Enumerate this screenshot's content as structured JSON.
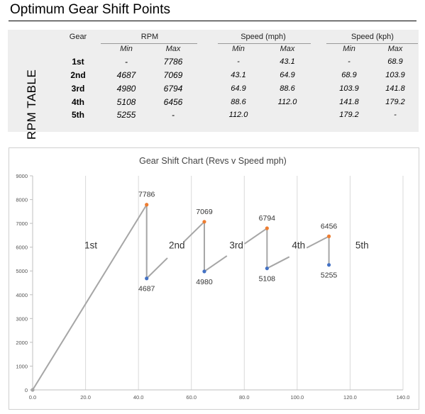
{
  "page_title": "Optimum Gear Shift Points",
  "table": {
    "side_label": "RPM TABLE",
    "headers": {
      "gear": "Gear",
      "rpm": "RPM",
      "speed_mph": "Speed (mph)",
      "speed_kph": "Speed (kph)",
      "min": "Min",
      "max": "Max"
    },
    "rows": [
      {
        "gear": "1st",
        "rpm_min": "-",
        "rpm_max": "7786",
        "mph_min": "-",
        "mph_max": "43.1",
        "kph_min": "-",
        "kph_max": "68.9"
      },
      {
        "gear": "2nd",
        "rpm_min": "4687",
        "rpm_max": "7069",
        "mph_min": "43.1",
        "mph_max": "64.9",
        "kph_min": "68.9",
        "kph_max": "103.9"
      },
      {
        "gear": "3rd",
        "rpm_min": "4980",
        "rpm_max": "6794",
        "mph_min": "64.9",
        "mph_max": "88.6",
        "kph_min": "103.9",
        "kph_max": "141.8"
      },
      {
        "gear": "4th",
        "rpm_min": "5108",
        "rpm_max": "6456",
        "mph_min": "88.6",
        "mph_max": "112.0",
        "kph_min": "141.8",
        "kph_max": "179.2"
      },
      {
        "gear": "5th",
        "rpm_min": "5255",
        "rpm_max": "-",
        "mph_min": "112.0",
        "mph_max": "",
        "kph_min": "179.2",
        "kph_max": "-"
      }
    ]
  },
  "chart_data": {
    "type": "line",
    "title": "Gear Shift Chart (Revs v Speed mph)",
    "xlim": [
      0,
      140
    ],
    "ylim": [
      0,
      9000
    ],
    "x_ticks": [
      "0.0",
      "20.0",
      "40.0",
      "60.0",
      "80.0",
      "100.0",
      "120.0",
      "140.0"
    ],
    "y_ticks": [
      "0",
      "1000",
      "2000",
      "3000",
      "4000",
      "5000",
      "6000",
      "7000",
      "8000",
      "9000"
    ],
    "grid": "vertical",
    "line_color": "#a6a6a6",
    "max_color": "#ed7d31",
    "min_color": "#4472c4",
    "origin_color": "#a6a6a6",
    "origin": {
      "x": 0,
      "y": 0
    },
    "max_points": [
      {
        "x": 43.1,
        "y": 7786,
        "label": "7786"
      },
      {
        "x": 64.9,
        "y": 7069,
        "label": "7069"
      },
      {
        "x": 88.6,
        "y": 6794,
        "label": "6794"
      },
      {
        "x": 112.0,
        "y": 6456,
        "label": "6456"
      }
    ],
    "min_points": [
      {
        "x": 43.1,
        "y": 4687,
        "label": "4687"
      },
      {
        "x": 64.9,
        "y": 4980,
        "label": "4980"
      },
      {
        "x": 88.6,
        "y": 5108,
        "label": "5108"
      },
      {
        "x": 112.0,
        "y": 5255,
        "label": "5255"
      }
    ],
    "gear_labels": [
      {
        "text": "1st",
        "x": 22,
        "y": 5950
      },
      {
        "text": "2nd",
        "x": 54.5,
        "y": 5950
      },
      {
        "text": "3rd",
        "x": 77,
        "y": 5950
      },
      {
        "text": "4th",
        "x": 100.5,
        "y": 5950
      },
      {
        "text": "5th",
        "x": 124.5,
        "y": 5950
      }
    ]
  }
}
